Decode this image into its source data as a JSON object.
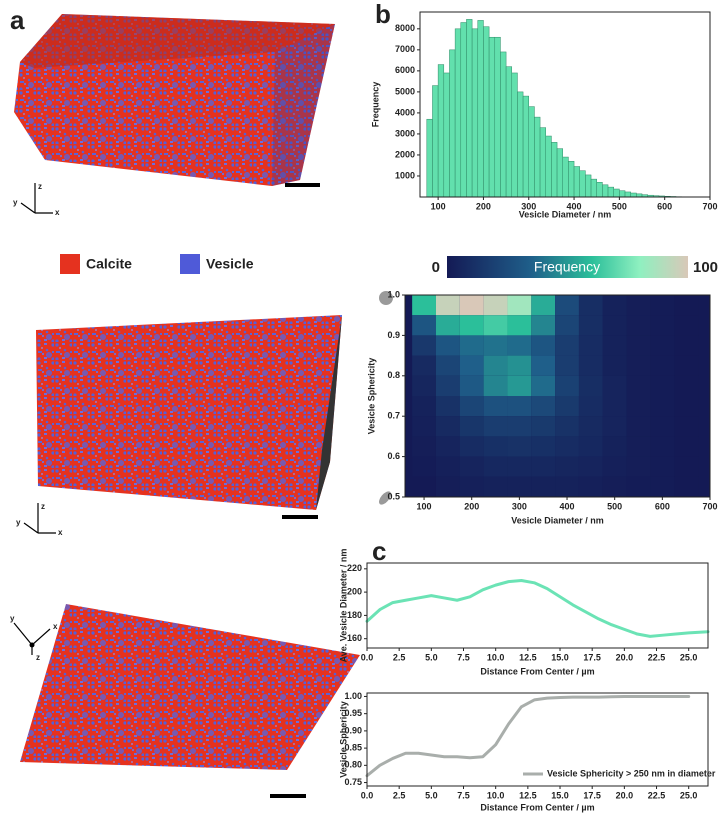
{
  "panel_labels": [
    "a",
    "b",
    "c"
  ],
  "triad_labels": [
    "x",
    "y",
    "z"
  ],
  "legend": [
    {
      "name": "Calcite",
      "color": "#e5321f"
    },
    {
      "name": "Vesicle",
      "color": "#4f5ad8"
    }
  ],
  "chart_data": [
    {
      "type": "histogram",
      "xlabel": "Vesicle Diameter / nm",
      "ylabel": "Frequency",
      "color": "#62e0ad",
      "bins": [
        75,
        87.5,
        100,
        112.5,
        125,
        137.5,
        150,
        162.5,
        175,
        187.5,
        200,
        212.5,
        225,
        237.5,
        250,
        262.5,
        275,
        287.5,
        300,
        312.5,
        325,
        337.5,
        350,
        362.5,
        375,
        387.5,
        400,
        412.5,
        425,
        437.5,
        450,
        462.5,
        475,
        487.5,
        500,
        512.5,
        525,
        537.5,
        550,
        562.5,
        575,
        587.5,
        600,
        612.5,
        625,
        637.5,
        650
      ],
      "counts": [
        3700,
        5300,
        6300,
        5900,
        7000,
        8000,
        8300,
        8450,
        8000,
        8400,
        8100,
        7600,
        7600,
        6900,
        6200,
        5900,
        5000,
        4800,
        4300,
        3800,
        3300,
        2900,
        2600,
        2300,
        1900,
        1700,
        1450,
        1250,
        1050,
        850,
        700,
        580,
        470,
        380,
        300,
        240,
        190,
        150,
        110,
        85,
        65,
        50,
        35,
        25,
        15,
        10
      ],
      "xlim": [
        60,
        700
      ],
      "xticks": [
        100,
        200,
        300,
        400,
        500,
        600,
        700
      ],
      "ylim": [
        0,
        8800
      ],
      "yticks": [
        1000,
        2000,
        3000,
        4000,
        5000,
        6000,
        7000,
        8000
      ]
    },
    {
      "type": "heatmap",
      "xlabel": "Vesicle Diameter / nm",
      "ylabel": "Vesicle Sphericity",
      "colorbar_label": "Frequency",
      "zlim": [
        0,
        100
      ],
      "x": [
        100,
        150,
        200,
        250,
        300,
        350,
        400,
        450,
        500,
        550,
        600,
        650
      ],
      "y": [
        0.975,
        0.925,
        0.875,
        0.825,
        0.775,
        0.725,
        0.675,
        0.625,
        0.575,
        0.525
      ],
      "z": [
        [
          60,
          95,
          100,
          95,
          85,
          55,
          25,
          10,
          4,
          2,
          1,
          0
        ],
        [
          30,
          55,
          60,
          65,
          60,
          45,
          22,
          10,
          4,
          2,
          1,
          0
        ],
        [
          15,
          30,
          38,
          40,
          38,
          30,
          18,
          9,
          4,
          2,
          1,
          0
        ],
        [
          8,
          22,
          35,
          45,
          48,
          35,
          18,
          9,
          4,
          2,
          1,
          0
        ],
        [
          6,
          18,
          32,
          45,
          50,
          38,
          20,
          10,
          5,
          2,
          1,
          0
        ],
        [
          4,
          12,
          22,
          28,
          28,
          24,
          16,
          9,
          5,
          2,
          1,
          0
        ],
        [
          3,
          8,
          14,
          18,
          18,
          16,
          12,
          8,
          5,
          2,
          1,
          0
        ],
        [
          2,
          5,
          9,
          11,
          12,
          11,
          9,
          7,
          4,
          2,
          1,
          0
        ],
        [
          1,
          3,
          5,
          7,
          7,
          7,
          6,
          5,
          3,
          2,
          1,
          0
        ],
        [
          0,
          2,
          3,
          4,
          4,
          4,
          4,
          3,
          2,
          1,
          1,
          0
        ]
      ],
      "xlim": [
        60,
        700
      ],
      "xticks": [
        100,
        200,
        300,
        400,
        500,
        600,
        700
      ],
      "ylim": [
        0.5,
        1.0
      ],
      "yticks": [
        0.5,
        0.6,
        0.7,
        0.8,
        0.9,
        {
          "value": 1.0,
          "label": "1.0"
        }
      ]
    },
    {
      "type": "line",
      "xlabel": "Distance From Center / µm",
      "ylabel": "Ave. Vesicle Diameter / nm",
      "x": [
        0,
        1,
        2,
        3,
        4,
        5,
        6,
        7,
        8,
        9,
        10,
        11,
        12,
        13,
        14,
        15,
        16,
        17,
        18,
        19,
        20,
        21,
        22,
        23,
        24,
        25,
        26.5
      ],
      "series": [
        {
          "color": "#6be3b5",
          "values": [
            175,
            185,
            191,
            193,
            195,
            197,
            195,
            193,
            196,
            202,
            206,
            209,
            210,
            208,
            203,
            196,
            189,
            183,
            177,
            172,
            168,
            164,
            162,
            163,
            164,
            165,
            166
          ]
        }
      ],
      "xlim": [
        0,
        26.5
      ],
      "xticks": [
        {
          "value": 0,
          "label": "0.0"
        },
        2.5,
        {
          "value": 5,
          "label": "5.0"
        },
        7.5,
        {
          "value": 10,
          "label": "10.0"
        },
        12.5,
        {
          "value": 15,
          "label": "15.0"
        },
        17.5,
        {
          "value": 20,
          "label": "20.0"
        },
        22.5,
        {
          "value": 25,
          "label": "25.0"
        }
      ],
      "ylim": [
        152,
        225
      ],
      "yticks": [
        160,
        180,
        200,
        220
      ]
    },
    {
      "type": "line",
      "xlabel": "Distance From Center / µm",
      "ylabel": "Vesicle Sphericity",
      "legend_corner": "lower right",
      "x": [
        0,
        1,
        2,
        3,
        4,
        5,
        6,
        7,
        8,
        9,
        10,
        11,
        12,
        13,
        14,
        15,
        16,
        17,
        18,
        19,
        20,
        21,
        22,
        23,
        24,
        25
      ],
      "series": [
        {
          "name": "Vesicle Sphericity > 250 nm in diameter",
          "color": "#a9aeab",
          "values": [
            0.77,
            0.8,
            0.82,
            0.835,
            0.835,
            0.83,
            0.825,
            0.825,
            0.822,
            0.825,
            0.86,
            0.92,
            0.97,
            0.99,
            0.995,
            0.997,
            0.998,
            0.998,
            0.998,
            0.999,
            1.0,
            1.0,
            1.0,
            1.0,
            1.0,
            1.0
          ]
        }
      ],
      "xlim": [
        0,
        26.5
      ],
      "xticks": [
        {
          "value": 0,
          "label": "0.0"
        },
        2.5,
        {
          "value": 5,
          "label": "5.0"
        },
        7.5,
        {
          "value": 10,
          "label": "10.0"
        },
        12.5,
        {
          "value": 15,
          "label": "15.0"
        },
        17.5,
        {
          "value": 20,
          "label": "20.0"
        },
        22.5,
        {
          "value": 25,
          "label": "25.0"
        }
      ],
      "ylim": [
        0.74,
        1.01
      ],
      "yticks": [
        0.75,
        {
          "value": 0.8,
          "label": "0.80"
        },
        0.85,
        {
          "value": 0.9,
          "label": "0.90"
        },
        0.95,
        {
          "value": 1.0,
          "label": "1.00"
        }
      ]
    }
  ]
}
